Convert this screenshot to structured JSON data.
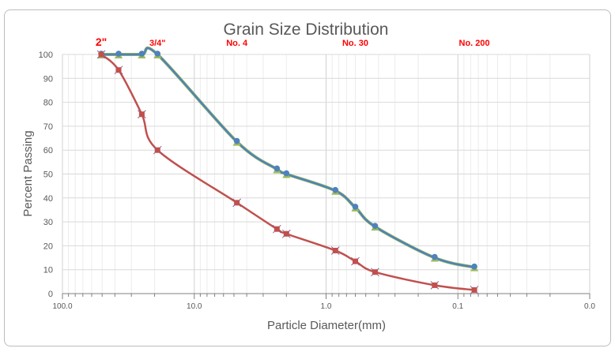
{
  "chart_data": {
    "type": "line",
    "title": "Grain Size Distribution",
    "xlabel": "Particle Diameter(mm)",
    "ylabel": "Percent  Passing",
    "x_scale": "log",
    "x_reversed": true,
    "xlim": [
      100,
      0.01
    ],
    "ylim": [
      0,
      100
    ],
    "x_tick_labels": [
      "100.0",
      "10.0",
      "1.0",
      "0.1",
      "0.0"
    ],
    "y_ticks": [
      0,
      10,
      20,
      30,
      40,
      50,
      60,
      70,
      80,
      90,
      100
    ],
    "grid": true,
    "sieve_labels": [
      {
        "text": "2\"",
        "x": 50.8
      },
      {
        "text": "3/4\"",
        "x": 19
      },
      {
        "text": "No. 4",
        "x": 4.75
      },
      {
        "text": "No. 30",
        "x": 0.6
      },
      {
        "text": "No. 200",
        "x": 0.075
      }
    ],
    "sieve_color": "#ff0000",
    "series": [
      {
        "color": "#4f81bd",
        "outline": "#9bbb59",
        "marker": "circle+triangle",
        "x": [
          50.8,
          37.5,
          25,
          19,
          4.75,
          2.36,
          2.0,
          0.85,
          0.6,
          0.425,
          0.15,
          0.075
        ],
        "y": [
          100,
          100,
          100,
          100,
          63.5,
          52,
          50,
          43,
          36,
          28,
          15,
          11
        ]
      },
      {
        "color": "#c0504d",
        "marker": "square-x",
        "x": [
          50.8,
          37.5,
          25,
          19,
          4.75,
          2.36,
          2.0,
          0.85,
          0.6,
          0.425,
          0.15,
          0.075
        ],
        "y": [
          100,
          93.5,
          75,
          60,
          38,
          27,
          25,
          18,
          13.5,
          9,
          3.5,
          1.5
        ]
      }
    ]
  }
}
